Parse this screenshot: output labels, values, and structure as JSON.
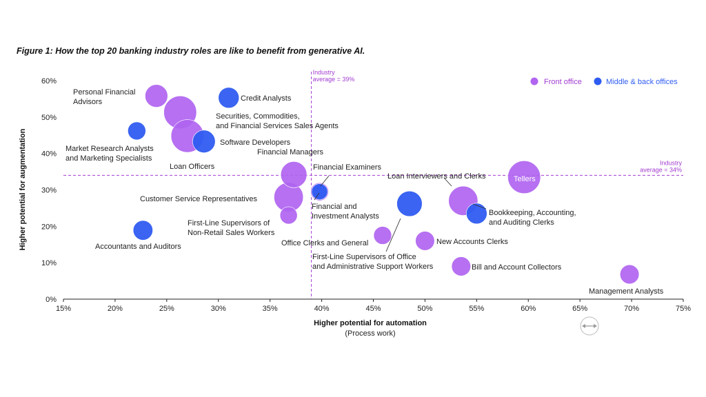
{
  "chart_data": {
    "type": "scatter",
    "title": "Figure 1: How the top 20 banking industry roles are like to benefit from generative AI.",
    "xlabel": "Higher potential for automation",
    "xlabel_sub": "(Process work)",
    "ylabel": "Higher potential for augmentation",
    "xlim": [
      15,
      75
    ],
    "ylim": [
      0,
      60
    ],
    "x_ticks": [
      "15%",
      "20%",
      "25%",
      "30%",
      "35%",
      "40%",
      "45%",
      "50%",
      "55%",
      "60%",
      "65%",
      "70%",
      "75%"
    ],
    "y_ticks": [
      "0%",
      "10%",
      "20%",
      "30%",
      "40%",
      "50%",
      "60%"
    ],
    "grid": false,
    "legend_position": "top-right",
    "series": [
      {
        "name": "Front office",
        "color": "#b064f0"
      },
      {
        "name": "Middle & back offices",
        "color": "#2f5cf0"
      }
    ],
    "reference_lines": [
      {
        "axis": "x",
        "value": 39,
        "label_1": "Industry",
        "label_2": "average = 39%"
      },
      {
        "axis": "y",
        "value": 34,
        "label_1": "Industry",
        "label_2": "average = 34%"
      }
    ],
    "points": [
      {
        "label": "Personal Financial Advisors",
        "x": 24.0,
        "y": 55.8,
        "size": 1.2,
        "series": 0
      },
      {
        "label": "Securities, Commodities, and Financial Services Sales Agents",
        "x": 26.3,
        "y": 51.3,
        "size": 2.5,
        "series": 0
      },
      {
        "label": "Loan Officers",
        "x": 27.0,
        "y": 44.8,
        "size": 2.5,
        "series": 0
      },
      {
        "label": "Credit Analysts",
        "x": 31.0,
        "y": 55.3,
        "size": 1.0,
        "series": 1
      },
      {
        "label": "Market Research Analysts and Marketing Specialists",
        "x": 22.1,
        "y": 46.2,
        "size": 0.75,
        "series": 1
      },
      {
        "label": "Software Developers",
        "x": 28.6,
        "y": 43.3,
        "size": 1.2,
        "series": 1
      },
      {
        "label": "Financial Managers",
        "x": 37.3,
        "y": 34.2,
        "size": 1.6,
        "series": 0
      },
      {
        "label": "Financial Examiners",
        "x": 39.8,
        "y": 29.5,
        "size": 0.75,
        "series": 0
      },
      {
        "label": "Financial and Investment Analysts",
        "x": 39.8,
        "y": 29.5,
        "size": 0.6,
        "series": 1
      },
      {
        "label": "Customer Service Representatives",
        "x": 36.8,
        "y": 28.0,
        "size": 2.0,
        "series": 0
      },
      {
        "label": "First-Line Supervisors of Non-Retail Sales Workers",
        "x": 36.8,
        "y": 23.0,
        "size": 0.7,
        "series": 0
      },
      {
        "label": "Accountants and Auditors",
        "x": 22.7,
        "y": 18.9,
        "size": 0.9,
        "series": 1
      },
      {
        "label": "Tellers",
        "x": 59.6,
        "y": 33.5,
        "size": 2.5,
        "series": 0
      },
      {
        "label": "Loan Interviewers and Clerks",
        "x": 53.7,
        "y": 27.0,
        "size": 2.0,
        "series": 0
      },
      {
        "label": "Bookkeeping, Accounting, and Auditing Clerks",
        "x": 55.0,
        "y": 23.5,
        "size": 1.0,
        "series": 1
      },
      {
        "label": "First-Line Supervisors of Office and Administrative Support Workers",
        "x": 48.5,
        "y": 26.2,
        "size": 1.5,
        "series": 1
      },
      {
        "label": "Office Clerks and General",
        "x": 45.9,
        "y": 17.5,
        "size": 0.75,
        "series": 0
      },
      {
        "label": "New Accounts Clerks",
        "x": 50.0,
        "y": 16.0,
        "size": 0.85,
        "series": 0
      },
      {
        "label": "Bill and Account Collectors",
        "x": 53.5,
        "y": 9.0,
        "size": 0.85,
        "series": 0
      },
      {
        "label": "Management Analysts",
        "x": 69.8,
        "y": 6.8,
        "size": 0.85,
        "series": 0
      }
    ]
  },
  "labels": {
    "personal_1": "Personal Financial",
    "personal_2": "Advisors",
    "credit": "Credit Analysts",
    "securities_1": "Securities, Commodities,",
    "securities_2": "and Financial Services Sales Agents",
    "market_1": "Market Research Analysts",
    "market_2": "and Marketing Specialists",
    "software": "Software Developers",
    "loan_officers": "Loan Officers",
    "fin_managers": "Financial Managers",
    "fin_examiners": "Financial Examiners",
    "csr": "Customer Service Representatives",
    "fin_inv_1": "Financial and",
    "fin_inv_2": "Investment Analysts",
    "fls_nonretail_1": "First-Line Supervisors of",
    "fls_nonretail_2": "Non-Retail Sales Workers",
    "accountants": "Accountants and Auditors",
    "office_clerks": "Office Clerks and General",
    "fls_office_1": "First-Line Supervisors of Office",
    "fls_office_2": "and Administrative Support Workers",
    "loan_interviewers": "Loan Interviewers and Clerks",
    "tellers": "Tellers",
    "bookkeeping_1": "Bookkeeping, Accounting,",
    "bookkeeping_2": "and Auditing Clerks",
    "new_accounts": "New Accounts Clerks",
    "bill": "Bill and Account Collectors",
    "management": "Management Analysts"
  }
}
